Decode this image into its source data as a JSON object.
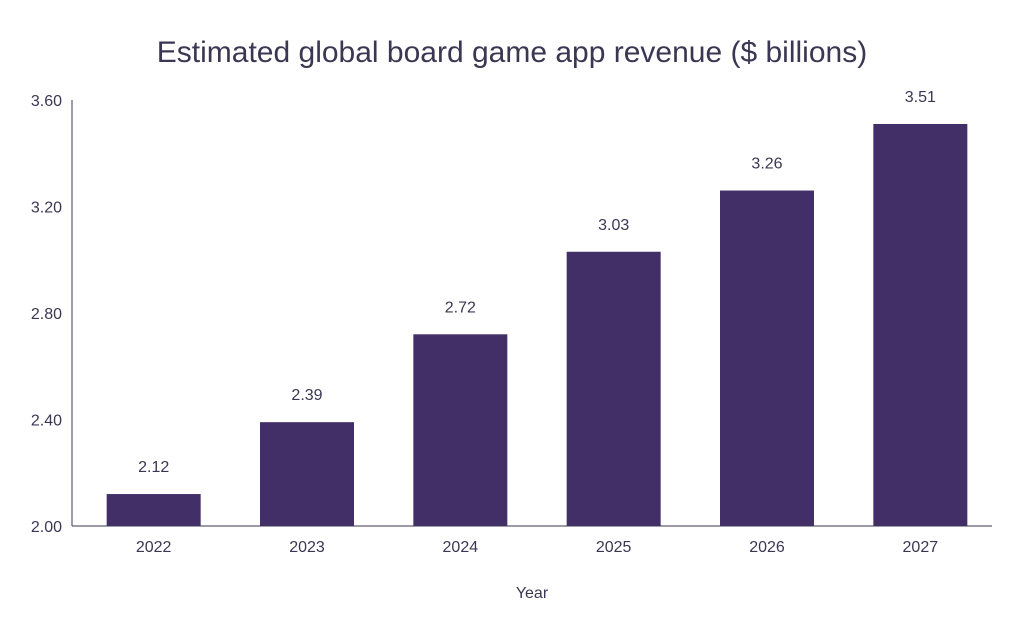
{
  "chart_data": {
    "type": "bar",
    "title": "Estimated global board game app revenue ($ billions)",
    "xlabel": "Year",
    "ylabel": "",
    "categories": [
      "2022",
      "2023",
      "2024",
      "2025",
      "2026",
      "2027"
    ],
    "values": [
      2.12,
      2.39,
      2.72,
      3.03,
      3.26,
      3.51
    ],
    "data_labels": [
      "2.12",
      "2.39",
      "2.72",
      "3.03",
      "3.26",
      "3.51"
    ],
    "ylim": [
      2.0,
      3.6
    ],
    "yticks": [
      "2.00",
      "2.40",
      "2.80",
      "3.20",
      "3.60"
    ],
    "grid": false,
    "legend": "none",
    "colors": {
      "bar": "#432f68",
      "text": "#3b3753",
      "axis": "#3b3753"
    }
  }
}
